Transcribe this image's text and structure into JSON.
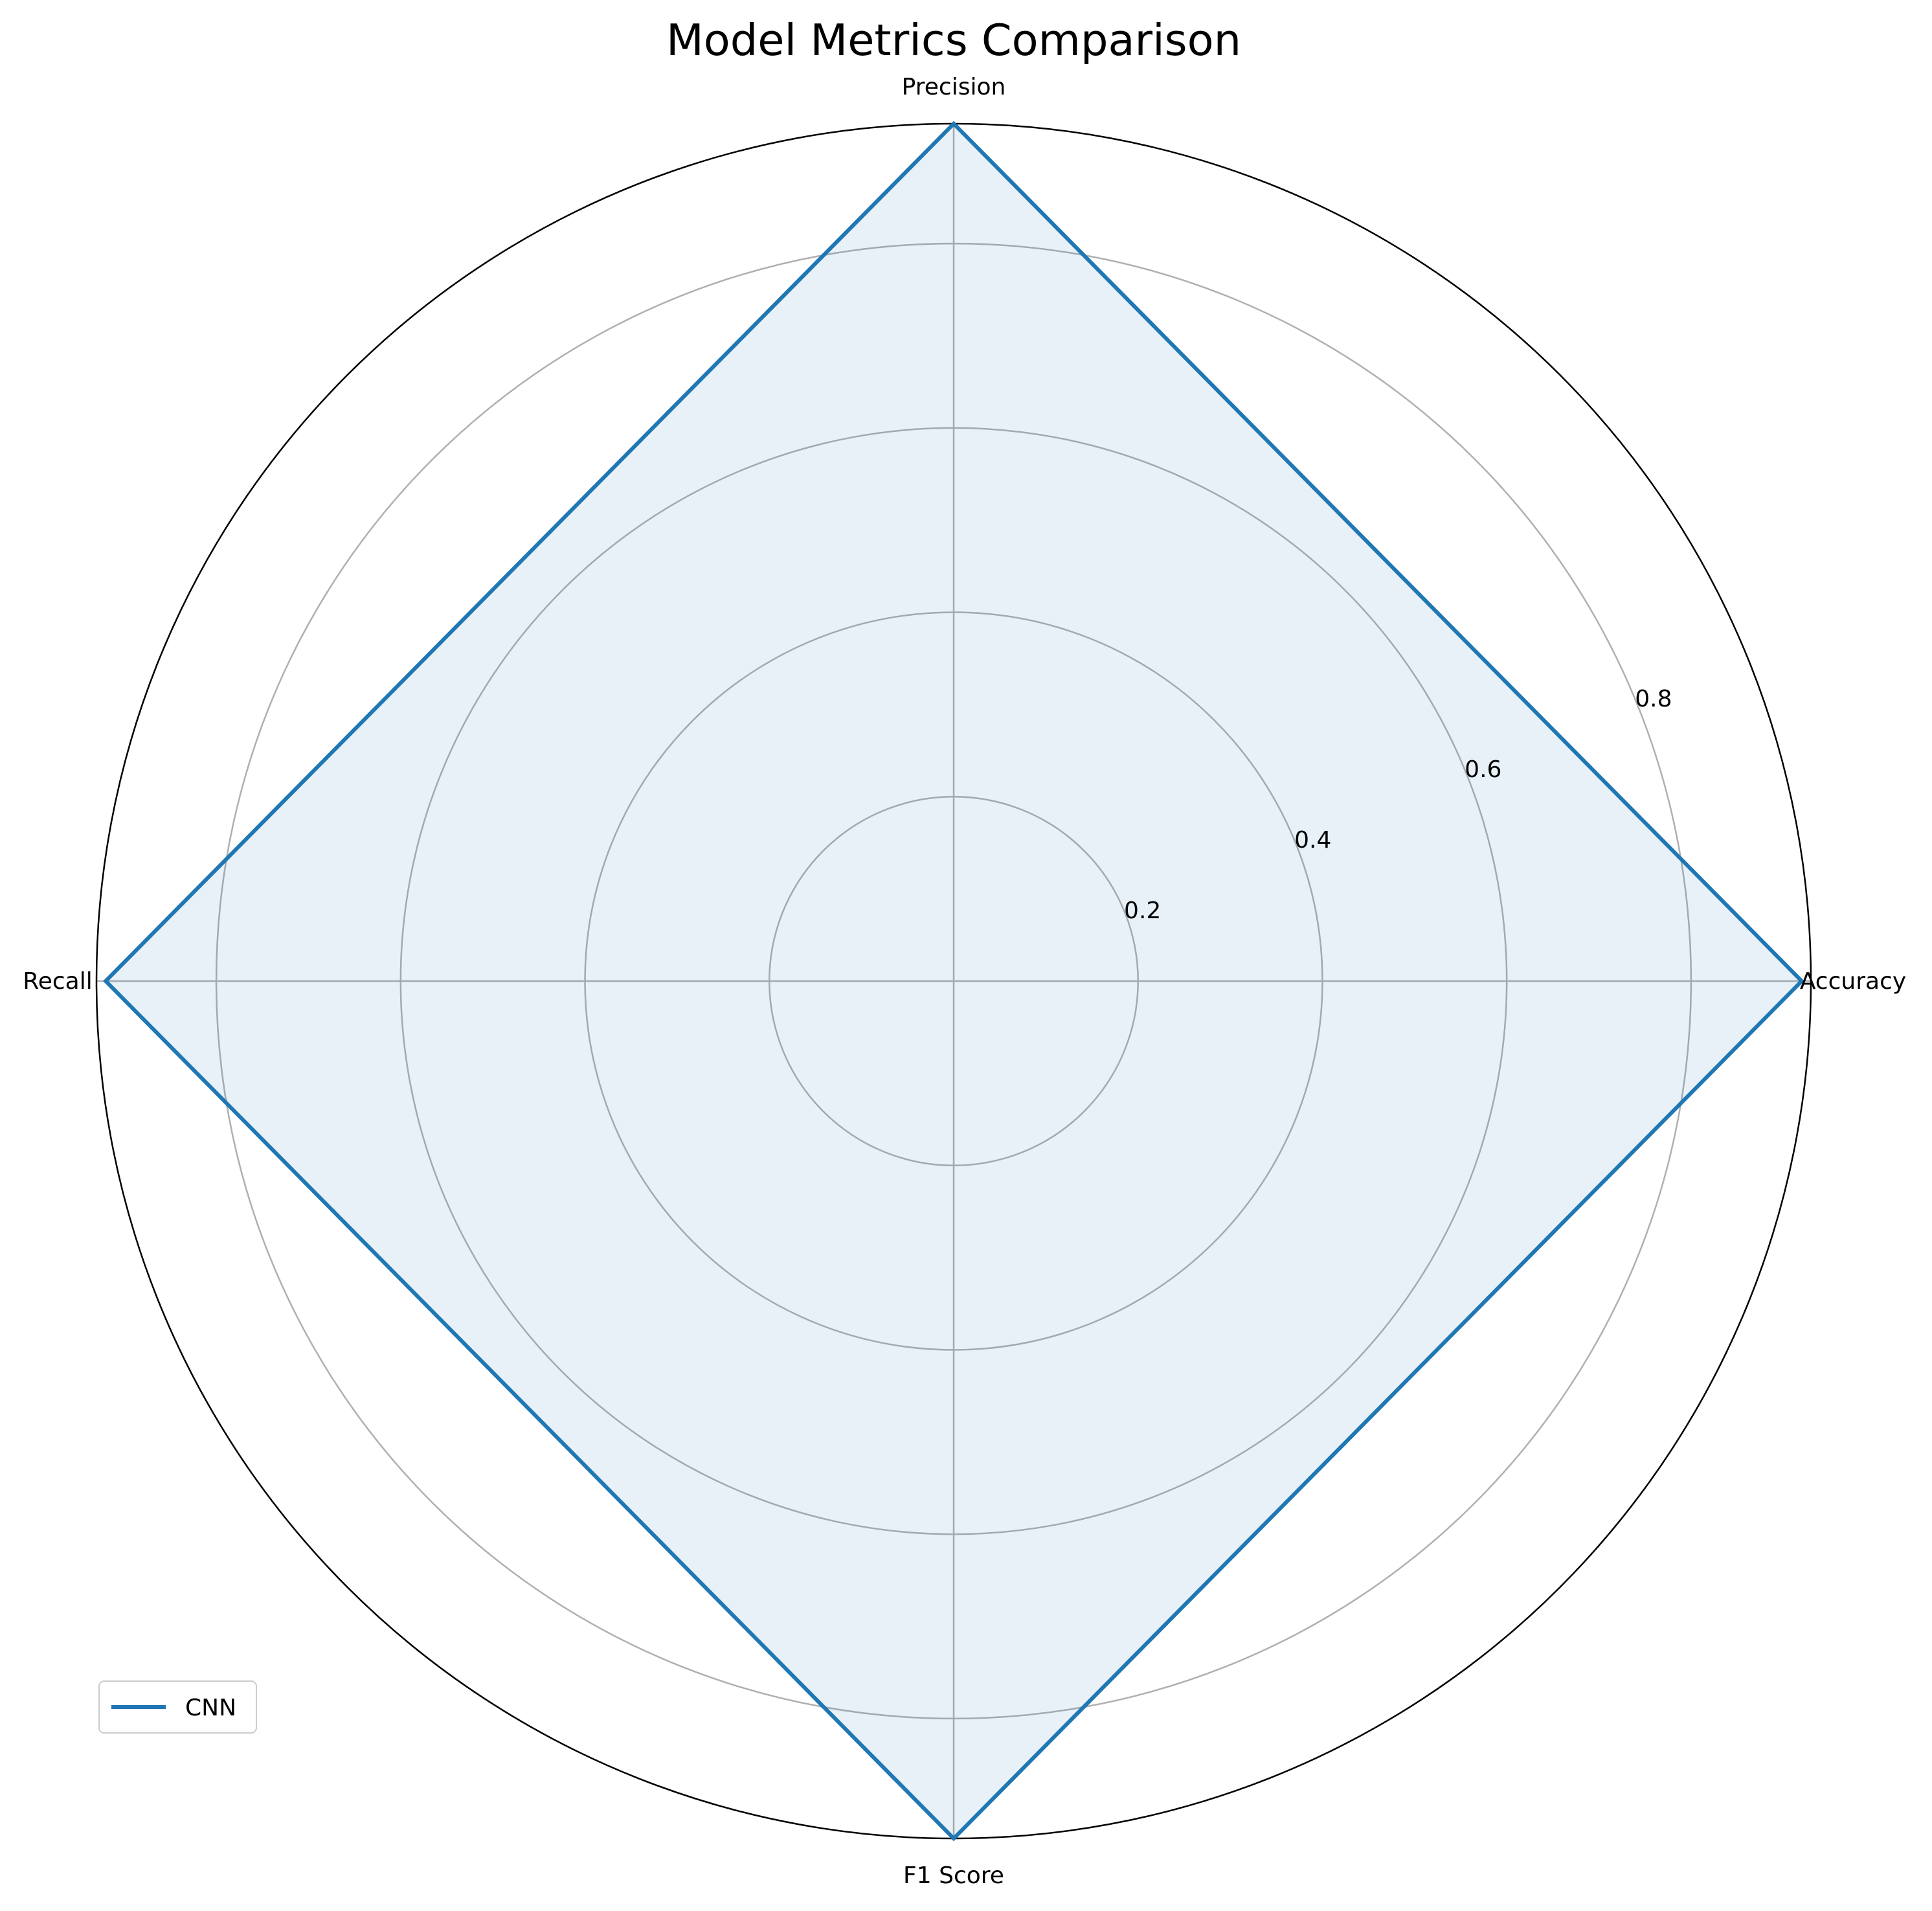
{
  "chart_data": {
    "type": "radar",
    "title": "Model Metrics Comparison",
    "categories": [
      "Accuracy",
      "Precision",
      "Recall",
      "F1 Score"
    ],
    "series": [
      {
        "name": "CNN",
        "values": [
          0.92,
          0.93,
          0.92,
          0.93
        ],
        "color": "#1f77b4"
      }
    ],
    "rlim": [
      0,
      0.93
    ],
    "rticks": [
      0.2,
      0.4,
      0.6,
      0.8
    ],
    "rtick_labels": [
      "0.2",
      "0.4",
      "0.6",
      "0.8"
    ],
    "grid": true,
    "legend_position": "lower-left"
  },
  "colors": {
    "series_line": "#1f77b4",
    "series_fill": "#1f77b4",
    "grid": "#b0b0b0",
    "frame": "#000000"
  }
}
